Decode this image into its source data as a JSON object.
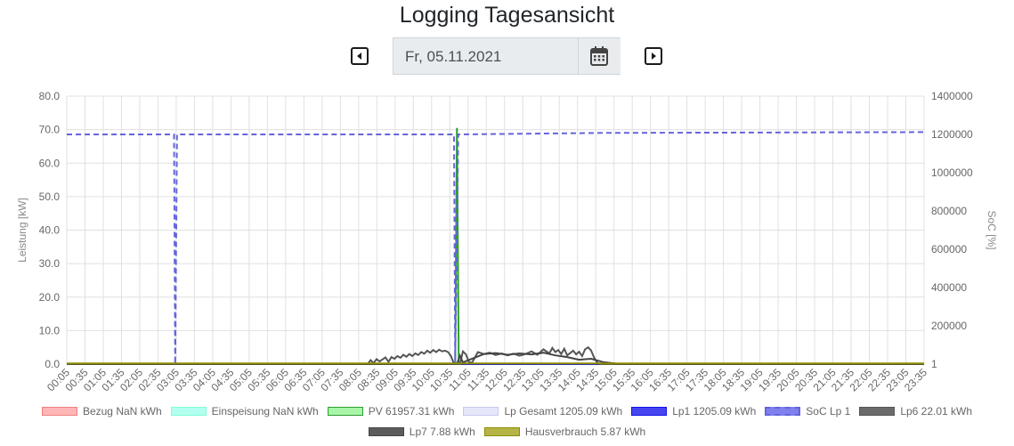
{
  "header": {
    "title": "Logging Tagesansicht"
  },
  "date_picker": {
    "value": "Fr, 05.11.2021"
  },
  "icons": {
    "prev": "caret-left-square-icon",
    "next": "caret-right-square-icon",
    "calendar": "calendar-icon"
  },
  "chart_data": {
    "type": "line",
    "ylabel": "Leistung [kW]",
    "y2label": "SoC [%]",
    "ylim": [
      0,
      80
    ],
    "y2lim": [
      1,
      1400000
    ],
    "y_ticks": [
      "0.0",
      "10.0",
      "20.0",
      "30.0",
      "40.0",
      "50.0",
      "60.0",
      "70.0",
      "80.0"
    ],
    "y2_ticks": [
      "1",
      "200000",
      "400000",
      "600000",
      "800000",
      "1000000",
      "1200000",
      "1400000"
    ],
    "x_ticks": [
      "00:05",
      "00:35",
      "01:05",
      "01:35",
      "02:05",
      "02:35",
      "03:05",
      "03:35",
      "04:05",
      "04:35",
      "05:05",
      "05:35",
      "06:05",
      "06:35",
      "07:05",
      "07:35",
      "08:05",
      "08:35",
      "09:05",
      "09:35",
      "10:05",
      "10:35",
      "11:05",
      "11:35",
      "12:05",
      "12:35",
      "13:05",
      "13:35",
      "14:05",
      "14:35",
      "15:05",
      "15:35",
      "16:05",
      "16:35",
      "17:05",
      "17:35",
      "18:05",
      "18:35",
      "19:05",
      "19:35",
      "20:05",
      "20:35",
      "21:05",
      "21:35",
      "22:05",
      "22:35",
      "23:05",
      "23:35"
    ],
    "grid": true,
    "legend_position": "bottom",
    "series": [
      {
        "name": "Bezug NaN kWh",
        "color": "#f08080",
        "fill": "#ffb6b6",
        "style": "solid",
        "axis": "left",
        "points": []
      },
      {
        "name": "Einspeisung NaN kWh",
        "color": "#7fffd4",
        "fill": "#b3fff0",
        "style": "solid",
        "axis": "left",
        "points": []
      },
      {
        "name": "PV 61957.31 kWh",
        "color": "#2e9d2e",
        "fill": "#a8f5a8",
        "style": "solid",
        "axis": "left",
        "points": [
          [
            0,
            0
          ],
          [
            652,
            0
          ],
          [
            655,
            70.5
          ],
          [
            658,
            0
          ],
          [
            1439,
            0
          ]
        ]
      },
      {
        "name": "Lp Gesamt 1205.09 kWh",
        "color": "#c8c8f0",
        "fill": "#e6e6fa",
        "style": "solid",
        "axis": "left",
        "points": [
          [
            0,
            0
          ],
          [
            1439,
            0
          ]
        ]
      },
      {
        "name": "Lp1 1205.09 kWh",
        "color": "#1414e6",
        "fill": "#4646f0",
        "style": "solid",
        "axis": "left",
        "points": [
          [
            0,
            0
          ],
          [
            1439,
            0
          ]
        ]
      },
      {
        "name": "SoC Lp 1",
        "color": "#6464dc",
        "fill": "#8080ee",
        "style": "dashed",
        "axis": "right",
        "points": [
          [
            0,
            1200000
          ],
          [
            180,
            1200000
          ],
          [
            182,
            1
          ],
          [
            185,
            1200000
          ],
          [
            650,
            1200000
          ],
          [
            652,
            1
          ],
          [
            657,
            1200000
          ],
          [
            900,
            1208000
          ],
          [
            1439,
            1212000
          ]
        ]
      },
      {
        "name": "Lp6 22.01 kWh",
        "color": "#555555",
        "fill": "#6b6b6b",
        "style": "solid",
        "axis": "left",
        "points": [
          [
            0,
            0
          ],
          [
            505,
            0
          ],
          [
            510,
            1.2
          ],
          [
            515,
            0.3
          ],
          [
            520,
            1.5
          ],
          [
            525,
            0.8
          ],
          [
            530,
            1.4
          ],
          [
            535,
            2.0
          ],
          [
            540,
            0.7
          ],
          [
            545,
            2.1
          ],
          [
            550,
            1.6
          ],
          [
            555,
            2.4
          ],
          [
            560,
            1.9
          ],
          [
            565,
            2.8
          ],
          [
            570,
            2.2
          ],
          [
            575,
            3.0
          ],
          [
            580,
            2.4
          ],
          [
            585,
            3.2
          ],
          [
            590,
            2.7
          ],
          [
            595,
            3.6
          ],
          [
            600,
            3.1
          ],
          [
            605,
            4.0
          ],
          [
            610,
            3.4
          ],
          [
            615,
            4.2
          ],
          [
            620,
            3.6
          ],
          [
            625,
            4.3
          ],
          [
            630,
            3.8
          ],
          [
            635,
            4.0
          ],
          [
            640,
            3.6
          ],
          [
            645,
            2.4
          ],
          [
            650,
            0
          ],
          [
            660,
            0
          ],
          [
            665,
            3.8
          ],
          [
            670,
            2.9
          ],
          [
            675,
            0.6
          ],
          [
            680,
            0.4
          ],
          [
            690,
            3.6
          ],
          [
            700,
            3.0
          ],
          [
            710,
            3.4
          ],
          [
            720,
            2.7
          ],
          [
            730,
            3.2
          ],
          [
            740,
            2.6
          ],
          [
            750,
            3.1
          ],
          [
            760,
            2.5
          ],
          [
            770,
            3.0
          ],
          [
            780,
            3.8
          ],
          [
            790,
            2.8
          ],
          [
            800,
            4.4
          ],
          [
            810,
            3.2
          ],
          [
            815,
            4.8
          ],
          [
            820,
            3.6
          ],
          [
            825,
            4.2
          ],
          [
            830,
            3.0
          ],
          [
            835,
            4.6
          ],
          [
            840,
            2.6
          ],
          [
            845,
            3.3
          ],
          [
            850,
            4.0
          ],
          [
            855,
            2.9
          ],
          [
            860,
            3.7
          ],
          [
            865,
            2.4
          ],
          [
            870,
            4.4
          ],
          [
            875,
            5.0
          ],
          [
            880,
            4.1
          ],
          [
            885,
            2.0
          ],
          [
            890,
            0.5
          ],
          [
            895,
            0
          ],
          [
            1439,
            0
          ]
        ]
      },
      {
        "name": "Lp7 7.88 kWh",
        "color": "#444444",
        "fill": "#5c5c5c",
        "style": "solid",
        "axis": "left",
        "points": [
          [
            0,
            0
          ],
          [
            655,
            0
          ],
          [
            660,
            2.5
          ],
          [
            665,
            0.5
          ],
          [
            700,
            3.0
          ],
          [
            720,
            3.3
          ],
          [
            740,
            2.8
          ],
          [
            760,
            3.2
          ],
          [
            780,
            2.9
          ],
          [
            800,
            3.4
          ],
          [
            820,
            2.6
          ],
          [
            840,
            2.1
          ],
          [
            860,
            1.3
          ],
          [
            880,
            1.6
          ],
          [
            900,
            0.6
          ],
          [
            920,
            0.2
          ],
          [
            930,
            0
          ],
          [
            1439,
            0
          ]
        ]
      },
      {
        "name": "Hausverbrauch 5.87 kWh",
        "color": "#8b8b00",
        "fill": "#b5b547",
        "style": "solid",
        "axis": "left",
        "points": [
          [
            0,
            0.2
          ],
          [
            1439,
            0.2
          ]
        ]
      }
    ]
  }
}
